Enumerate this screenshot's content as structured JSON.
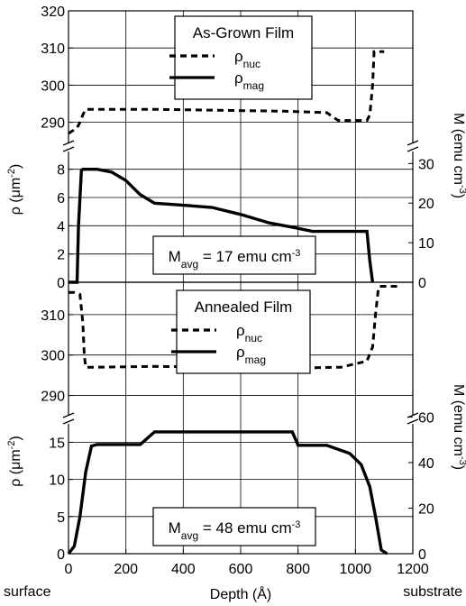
{
  "chart_data": [
    {
      "type": "line",
      "panel": "top",
      "legend_title": "As-Grown Film",
      "legend_entries": [
        {
          "symbol": "ρ",
          "sub": "nuc",
          "style": "dashed"
        },
        {
          "symbol": "ρ",
          "sub": "mag",
          "style": "solid"
        }
      ],
      "annotation": {
        "pre": "M",
        "sub": "avg",
        "mid": " = 17 emu cm",
        "sup": "-3"
      },
      "xlim": [
        0,
        1200
      ],
      "y_upper_range": [
        287,
        320
      ],
      "y_upper_ticks": [
        290,
        300,
        310,
        320
      ],
      "y_lower_range": [
        0,
        9
      ],
      "y_lower_ticks": [
        0,
        2,
        4,
        6,
        8
      ],
      "right_ticks": [
        0,
        10,
        20,
        30
      ],
      "right_per_left": 3.57,
      "left_label": {
        "pre": "ρ (μm",
        "sup": "-2",
        "post": ")"
      },
      "right_label": {
        "pre": "M (emu cm",
        "sup": "-3",
        "post": ")"
      },
      "series": [
        {
          "style": "dashed",
          "x": [
            0,
            10,
            20,
            30,
            40,
            50,
            60,
            300,
            550,
            750,
            900,
            940,
            1000,
            1040,
            1050,
            1060,
            1065,
            1100
          ],
          "y": [
            287,
            287.5,
            288,
            288.5,
            290,
            292,
            293.5,
            293.5,
            293.2,
            293,
            292.6,
            290.5,
            290.5,
            290.5,
            292,
            300,
            309,
            309
          ]
        },
        {
          "style": "solid",
          "x": [
            0,
            30,
            35,
            45,
            50,
            100,
            150,
            200,
            250,
            300,
            400,
            500,
            600,
            700,
            780,
            850,
            1000,
            1040,
            1050,
            1060
          ],
          "y": [
            0,
            0,
            4,
            7.9,
            8,
            8,
            7.8,
            7.2,
            6.2,
            5.6,
            5.45,
            5.3,
            4.8,
            4.2,
            3.9,
            3.6,
            3.6,
            3.6,
            1.5,
            0
          ]
        }
      ]
    },
    {
      "type": "line",
      "panel": "bottom",
      "legend_title": "Annealed Film",
      "legend_entries": [
        {
          "symbol": "ρ",
          "sub": "nuc",
          "style": "dashed"
        },
        {
          "symbol": "ρ",
          "sub": "mag",
          "style": "solid"
        }
      ],
      "annotation": {
        "pre": "M",
        "sub": "avg",
        "mid": " = 48 emu cm",
        "sup": "-3"
      },
      "xlim": [
        0,
        1200
      ],
      "y_upper_range": [
        287,
        318
      ],
      "y_upper_ticks": [
        290,
        300,
        310
      ],
      "y_lower_range": [
        0,
        17
      ],
      "y_lower_ticks": [
        0,
        5,
        10,
        15
      ],
      "right_ticks": [
        0,
        20,
        40,
        60
      ],
      "right_per_left": 3.26,
      "left_label": {
        "pre": "ρ (μm",
        "sup": "-2",
        "post": ")"
      },
      "right_label": {
        "pre": "M (emu cm",
        "sup": "-3",
        "post": ")"
      },
      "x_ticks": [
        0,
        200,
        400,
        600,
        800,
        1000,
        1200
      ],
      "xlabel": "Depth (Å)",
      "x_end_labels": {
        "left": "surface",
        "right": "substrate"
      },
      "series": [
        {
          "style": "dashed",
          "x": [
            0,
            20,
            40,
            50,
            55,
            60,
            100,
            300,
            800,
            950,
            1040,
            1060,
            1070,
            1080,
            1085,
            1150
          ],
          "y": [
            315.5,
            315.5,
            315,
            308,
            300,
            297,
            297,
            297.2,
            296.8,
            297,
            298.5,
            302,
            310,
            316.5,
            317,
            317
          ]
        },
        {
          "style": "solid",
          "x": [
            0,
            20,
            40,
            60,
            80,
            100,
            250,
            300,
            500,
            780,
            800,
            900,
            980,
            1020,
            1050,
            1070,
            1090,
            1110
          ],
          "y": [
            0,
            1,
            5,
            11,
            14.5,
            14.7,
            14.7,
            16.4,
            16.4,
            16.4,
            14.6,
            14.6,
            13.5,
            12,
            9,
            5,
            0.5,
            0
          ]
        }
      ]
    }
  ]
}
